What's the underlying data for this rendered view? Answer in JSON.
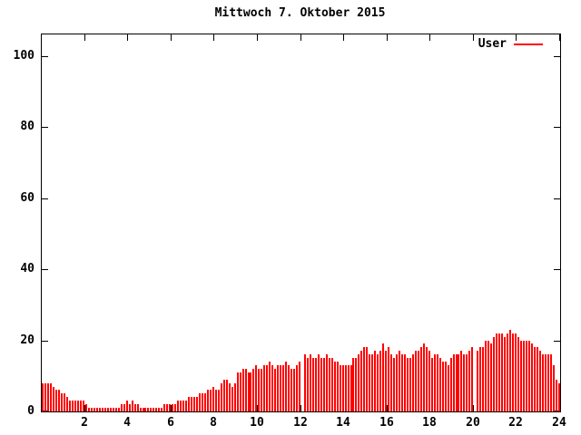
{
  "title": "Mittwoch 7. Oktober 2015",
  "legend": {
    "label": "User",
    "color": "#ff0000",
    "position": "top-right"
  },
  "colors": {
    "background": "#ffffff",
    "axis": "#000000",
    "series": "#ff0000"
  },
  "chart_data": {
    "type": "bar",
    "title": "Mittwoch 7. Oktober 2015",
    "xlabel": "",
    "ylabel": "",
    "xlim": [
      0,
      24
    ],
    "ylim": [
      0,
      106
    ],
    "x_ticks": [
      2,
      4,
      6,
      8,
      10,
      12,
      14,
      16,
      18,
      20,
      22,
      24
    ],
    "y_ticks": [
      0,
      20,
      40,
      60,
      80,
      100
    ],
    "grid": false,
    "legend_position": "top-right",
    "series": [
      {
        "name": "User",
        "color": "#ff0000",
        "interval_hours": 0.125,
        "start_hour": 0,
        "values": [
          8,
          8,
          8,
          8,
          7,
          6,
          6,
          5,
          5,
          4,
          3,
          3,
          3,
          3,
          3,
          3,
          2,
          1,
          1,
          1,
          1,
          1,
          1,
          1,
          1,
          1,
          1,
          1,
          1,
          2,
          2,
          3,
          2,
          3,
          2,
          2,
          1,
          1,
          1,
          1,
          1,
          1,
          1,
          1,
          1,
          2,
          2,
          2,
          2,
          2,
          3,
          3,
          3,
          3,
          4,
          4,
          4,
          4,
          5,
          5,
          5,
          6,
          6,
          7,
          6,
          6,
          8,
          9,
          9,
          8,
          7,
          8,
          11,
          11,
          12,
          12,
          11,
          11,
          12,
          13,
          12,
          12,
          13,
          13,
          14,
          13,
          12,
          13,
          13,
          13,
          14,
          13,
          12,
          12,
          13,
          14,
          0,
          16,
          15,
          16,
          15,
          15,
          16,
          15,
          15,
          16,
          15,
          15,
          14,
          14,
          13,
          13,
          13,
          13,
          13,
          15,
          15,
          16,
          17,
          18,
          18,
          16,
          16,
          17,
          16,
          17,
          19,
          17,
          18,
          16,
          15,
          16,
          17,
          16,
          16,
          15,
          15,
          16,
          17,
          17,
          18,
          19,
          18,
          17,
          15,
          16,
          16,
          15,
          14,
          14,
          13,
          15,
          16,
          16,
          16,
          17,
          16,
          16,
          17,
          18,
          0,
          17,
          18,
          18,
          20,
          20,
          19,
          21,
          22,
          22,
          22,
          21,
          22,
          23,
          22,
          22,
          21,
          20,
          20,
          20,
          20,
          19,
          18,
          18,
          17,
          16,
          16,
          16,
          16,
          13,
          9,
          8
        ]
      }
    ]
  }
}
